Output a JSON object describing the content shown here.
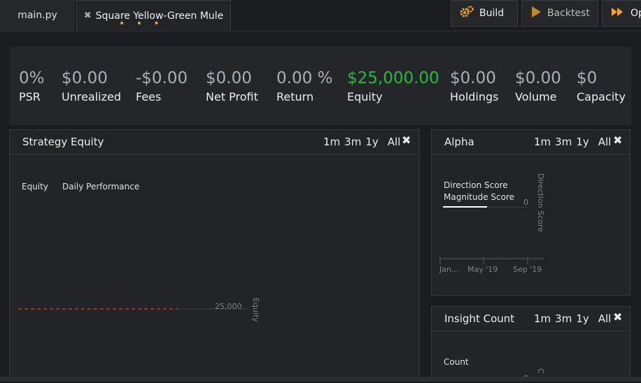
{
  "tabs": {
    "main_label": "main.py",
    "strategy_close": "✖",
    "strategy_label": "Square Yellow-Green Mule",
    "strategy_dots": "• • •"
  },
  "toolbar": {
    "build_label": "Build",
    "backtest_label": "Backtest",
    "optimize_label": "Op"
  },
  "stats": [
    {
      "value": "0%",
      "label": "PSR"
    },
    {
      "value": "$0.00",
      "label": "Unrealized"
    },
    {
      "value": "-$0.00",
      "label": "Fees"
    },
    {
      "value": "$0.00",
      "label": "Net Profit"
    },
    {
      "value": "0.00 %",
      "label": "Return"
    },
    {
      "value": "$25,000.00",
      "label": "Equity"
    },
    {
      "value": "$0.00",
      "label": "Holdings"
    },
    {
      "value": "$0.00",
      "label": "Volume"
    },
    {
      "value": "$0",
      "label": "Capacity"
    }
  ],
  "equity_panel": {
    "title": "Strategy Equity",
    "ranges": [
      "1m",
      "3m",
      "1y",
      "All"
    ],
    "close": "✖",
    "legend": [
      "Equity",
      "Daily Performance"
    ],
    "tick": "25,000",
    "axis_label": "Equity"
  },
  "alpha_panel": {
    "title": "Alpha",
    "ranges": [
      "1m",
      "3m",
      "1y",
      "All"
    ],
    "close": "✖",
    "legend": [
      "Direction Score",
      "Magnitude Score"
    ],
    "y_tick": "0",
    "axis_label": "Direction Score",
    "x_ticks": [
      "Jan...",
      "May '19",
      "Sep '19"
    ]
  },
  "insight_panel": {
    "title": "Insight Count",
    "ranges": [
      "1m",
      "3m",
      "1y",
      "All"
    ],
    "close": "✖",
    "legend": "Count",
    "tick": "0",
    "axis_label": "C"
  },
  "colors": {
    "accent": "#f5a623",
    "positive": "#1ebd3a",
    "equity_line": "#c0392b"
  }
}
